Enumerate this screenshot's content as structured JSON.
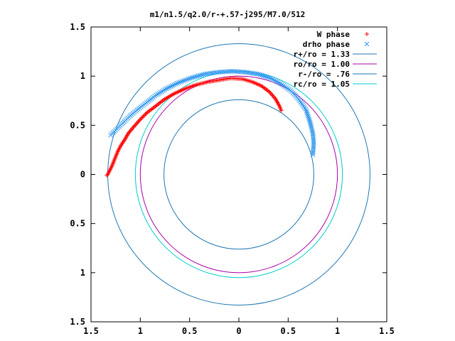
{
  "chart_data": {
    "type": "scatter",
    "title": "m1/n1.5/q2.0/r-+.57-j295/M7.0/512",
    "xlim": [
      -1.5,
      1.5
    ],
    "ylim": [
      -1.5,
      1.5
    ],
    "x_ticks": [
      -1.5,
      -1,
      -0.5,
      0,
      0.5,
      1,
      1.5
    ],
    "y_ticks": [
      1.5,
      1,
      0.5,
      0,
      -0.5,
      -1,
      -1.5
    ],
    "x_tick_labels": [
      "1.5",
      "1",
      "0.5",
      "0",
      "0.5",
      "1",
      "1.5"
    ],
    "y_tick_labels": [
      "1.5",
      "1",
      "0.5",
      "0",
      "0.5",
      "1",
      "1.5"
    ],
    "grid": false,
    "legend_position": "top-right",
    "series": [
      {
        "name": "W phase",
        "kind": "points",
        "marker": "plus",
        "color": "#ff0000",
        "start_point": [
          -1.34,
          -0.01
        ],
        "end_point": [
          0.43,
          0.65
        ],
        "points": [
          [
            -1.34,
            -0.01
          ],
          [
            -1.33,
            0.0
          ],
          [
            -1.31,
            0.04
          ],
          [
            -1.29,
            0.08
          ],
          [
            -1.27,
            0.13
          ],
          [
            -1.25,
            0.18
          ],
          [
            -1.23,
            0.23
          ],
          [
            -1.2,
            0.29
          ],
          [
            -1.16,
            0.35
          ],
          [
            -1.12,
            0.42
          ],
          [
            -1.07,
            0.48
          ],
          [
            -1.0,
            0.56
          ],
          [
            -0.93,
            0.63
          ],
          [
            -0.85,
            0.69
          ],
          [
            -0.76,
            0.76
          ],
          [
            -0.66,
            0.82
          ],
          [
            -0.55,
            0.87
          ],
          [
            -0.44,
            0.91
          ],
          [
            -0.32,
            0.94
          ],
          [
            -0.2,
            0.96
          ],
          [
            -0.08,
            0.98
          ],
          [
            0.04,
            0.97
          ],
          [
            0.14,
            0.94
          ],
          [
            0.23,
            0.9
          ],
          [
            0.31,
            0.84
          ],
          [
            0.37,
            0.77
          ],
          [
            0.41,
            0.7
          ],
          [
            0.43,
            0.65
          ]
        ]
      },
      {
        "name": "drho phase",
        "kind": "points",
        "marker": "cross",
        "color": "#3399ee",
        "start_point": [
          -1.3,
          0.4
        ],
        "end_point": [
          0.75,
          0.2
        ],
        "points": [
          [
            -1.3,
            0.4
          ],
          [
            -1.25,
            0.45
          ],
          [
            -1.19,
            0.51
          ],
          [
            -1.12,
            0.58
          ],
          [
            -1.04,
            0.65
          ],
          [
            -0.95,
            0.72
          ],
          [
            -0.85,
            0.8
          ],
          [
            -0.74,
            0.87
          ],
          [
            -0.62,
            0.93
          ],
          [
            -0.49,
            0.98
          ],
          [
            -0.35,
            1.02
          ],
          [
            -0.21,
            1.04
          ],
          [
            -0.07,
            1.05
          ],
          [
            0.07,
            1.04
          ],
          [
            0.2,
            1.02
          ],
          [
            0.32,
            0.98
          ],
          [
            0.43,
            0.92
          ],
          [
            0.53,
            0.85
          ],
          [
            0.61,
            0.76
          ],
          [
            0.68,
            0.66
          ],
          [
            0.72,
            0.54
          ],
          [
            0.75,
            0.42
          ],
          [
            0.76,
            0.32
          ],
          [
            0.75,
            0.2
          ]
        ]
      },
      {
        "name": "r+/ro = 1.33",
        "kind": "circle",
        "radius": 1.33,
        "color": "#1f77b4"
      },
      {
        "name": "ro/ro = 1.00",
        "kind": "circle",
        "radius": 1.0,
        "color": "#aa00aa"
      },
      {
        "name": "r-/ro = .76",
        "kind": "circle",
        "radius": 0.76,
        "color": "#1f77b4"
      },
      {
        "name": "rc/ro = 1.05",
        "kind": "circle",
        "radius": 1.05,
        "color": "#00cccc"
      }
    ]
  }
}
